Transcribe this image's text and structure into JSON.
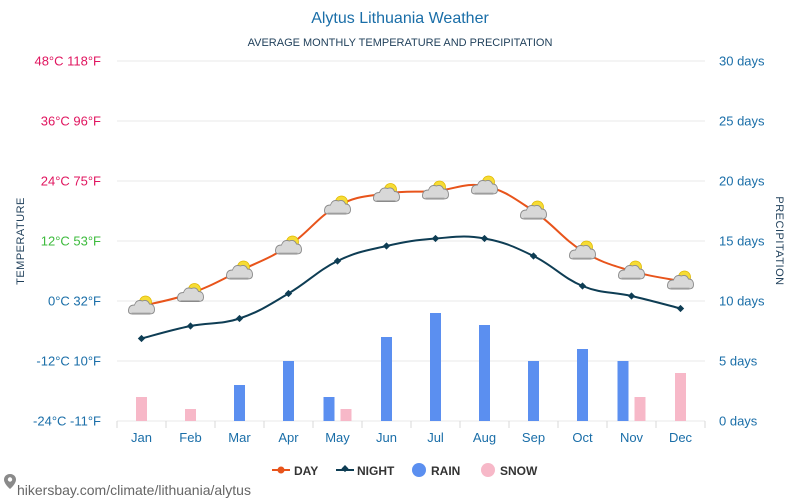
{
  "title": "Alytus Lithuania Weather",
  "subtitle": "AVERAGE MONTHLY TEMPERATURE AND PRECIPITATION",
  "source_text": "hikersbay.com/climate/lithuania/alytus",
  "y_left_label": "TEMPERATURE",
  "y_right_label": "PRECIPITATION",
  "colors": {
    "day": "#e8541b",
    "night": "#0e3d54",
    "rain": "#5b8ff0",
    "snow": "#f7b8c8",
    "axis_text": "#1a6ea8"
  },
  "chart_data": {
    "type": "line+bar",
    "categories": [
      "Jan",
      "Feb",
      "Mar",
      "Apr",
      "May",
      "Jun",
      "Jul",
      "Aug",
      "Sep",
      "Oct",
      "Nov",
      "Dec"
    ],
    "y_left": {
      "ticks": [
        {
          "value": -24,
          "label": "-24°C -11°F",
          "color": "#1a6ea8"
        },
        {
          "value": -12,
          "label": "-12°C 10°F",
          "color": "#1a6ea8"
        },
        {
          "value": 0,
          "label": "0°C 32°F",
          "color": "#1a6ea8"
        },
        {
          "value": 12,
          "label": "12°C 53°F",
          "color": "#3dbb3d"
        },
        {
          "value": 24,
          "label": "24°C 75°F",
          "color": "#e0155f"
        },
        {
          "value": 36,
          "label": "36°C 96°F",
          "color": "#e0155f"
        },
        {
          "value": 48,
          "label": "48°C 118°F",
          "color": "#e0155f"
        }
      ],
      "range": [
        -24,
        48
      ]
    },
    "y_right": {
      "ticks": [
        "0 days",
        "5 days",
        "10 days",
        "15 days",
        "20 days",
        "25 days",
        "30 days"
      ],
      "range": [
        0,
        30
      ]
    },
    "series": [
      {
        "name": "DAY",
        "kind": "line",
        "values": [
          -1,
          1.5,
          6,
          11,
          19,
          21.5,
          22,
          23,
          18,
          10,
          6,
          4
        ]
      },
      {
        "name": "NIGHT",
        "kind": "line",
        "values": [
          -7.5,
          -5,
          -3.5,
          1.5,
          8,
          11,
          12.5,
          12.5,
          9,
          3,
          1,
          -1.5
        ]
      },
      {
        "name": "RAIN",
        "kind": "bar",
        "values": [
          0,
          0,
          3,
          5,
          2,
          7,
          9,
          8,
          5,
          6,
          5,
          0
        ]
      },
      {
        "name": "SNOW",
        "kind": "bar",
        "values": [
          2,
          1,
          0,
          0,
          1,
          0,
          0,
          0,
          0,
          0,
          2,
          4
        ]
      }
    ],
    "weather_icon": "sun-behind-cloud-icon",
    "grid": true,
    "legend_position": "bottom"
  }
}
